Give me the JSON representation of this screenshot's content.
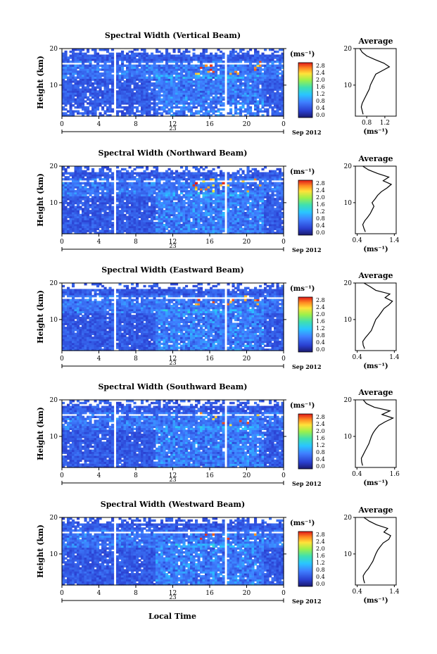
{
  "figure": {
    "xlabel": "Local Time",
    "date_label": "Sep 2012",
    "day_label": "23",
    "unit_label": "(ms⁻¹)",
    "avg_title": "Average",
    "ylabel": "Height (km)"
  },
  "chart_data": [
    {
      "type": "heatmap",
      "title": "Spectral Width (Vertical Beam)",
      "xlabel": "",
      "ylabel": "Height (km)",
      "xlim": [
        0,
        24
      ],
      "ylim": [
        1.5,
        20
      ],
      "xticks": [
        "0",
        "4",
        "8",
        "12",
        "16",
        "20",
        "0"
      ],
      "yticks": [
        "10",
        "20"
      ],
      "colorbar": {
        "unit": "(ms⁻¹)",
        "ticks": [
          "0.0",
          "0.4",
          "0.8",
          "1.2",
          "1.6",
          "2.0",
          "2.4",
          "2.8"
        ],
        "range": [
          0,
          2.8
        ]
      },
      "gaps_hours": [
        [
          5.5,
          6.0
        ],
        [
          17.5,
          18.0
        ]
      ],
      "average": {
        "title": "Average",
        "xlabel": "(ms⁻¹)",
        "xlim": [
          0.55,
          1.45
        ],
        "xticks": [
          "0.8",
          "1.2"
        ],
        "yticks": [
          "10",
          "20"
        ],
        "height_km": [
          2,
          3,
          4,
          5,
          6,
          7,
          8,
          9,
          10,
          11,
          12,
          13,
          14,
          15,
          16,
          17,
          18,
          19,
          20
        ],
        "width_ms": [
          0.72,
          0.7,
          0.68,
          0.7,
          0.74,
          0.78,
          0.82,
          0.86,
          0.88,
          0.92,
          0.96,
          1.0,
          1.15,
          1.3,
          1.18,
          0.98,
          0.8,
          0.7,
          0.65
        ]
      }
    },
    {
      "type": "heatmap",
      "title": "Spectral Width (Northward Beam)",
      "xlabel": "",
      "ylabel": "Height (km)",
      "xlim": [
        0,
        24
      ],
      "ylim": [
        1.5,
        20
      ],
      "xticks": [
        "0",
        "4",
        "8",
        "12",
        "16",
        "20",
        "0"
      ],
      "yticks": [
        "10",
        "20"
      ],
      "colorbar": {
        "unit": "(ms⁻¹)",
        "ticks": [
          "0.0",
          "0.4",
          "0.8",
          "1.2",
          "1.6",
          "2.0",
          "2.4",
          "2.8"
        ],
        "range": [
          0,
          2.8
        ]
      },
      "gaps_hours": [
        [
          5.5,
          6.0
        ],
        [
          17.5,
          18.0
        ]
      ],
      "average": {
        "title": "Average",
        "xlabel": "(ms⁻¹)",
        "xlim": [
          0.35,
          1.45
        ],
        "xticks": [
          "0.4",
          "1.4"
        ],
        "yticks": [
          "10",
          "20"
        ],
        "height_km": [
          2,
          3,
          4,
          5,
          6,
          7,
          8,
          9,
          10,
          11,
          12,
          13,
          14,
          15,
          16,
          17,
          18,
          19,
          20
        ],
        "width_ms": [
          0.62,
          0.58,
          0.55,
          0.6,
          0.68,
          0.75,
          0.8,
          0.85,
          0.8,
          0.88,
          0.95,
          1.05,
          1.2,
          1.32,
          1.1,
          1.25,
          0.95,
          0.7,
          0.55
        ]
      }
    },
    {
      "type": "heatmap",
      "title": "Spectral Width (Eastward Beam)",
      "xlabel": "",
      "ylabel": "Height (km)",
      "xlim": [
        0,
        24
      ],
      "ylim": [
        1.5,
        20
      ],
      "xticks": [
        "0",
        "4",
        "8",
        "12",
        "16",
        "20",
        "0"
      ],
      "yticks": [
        "10",
        "20"
      ],
      "colorbar": {
        "unit": "(ms⁻¹)",
        "ticks": [
          "0.0",
          "0.4",
          "0.8",
          "1.2",
          "1.6",
          "2.0",
          "2.4",
          "2.8"
        ],
        "range": [
          0,
          2.8
        ]
      },
      "gaps_hours": [
        [
          5.5,
          6.0
        ],
        [
          17.5,
          18.0
        ]
      ],
      "average": {
        "title": "Average",
        "xlabel": "(ms⁻¹)",
        "xlim": [
          0.35,
          1.45
        ],
        "xticks": [
          "0.4",
          "1.4"
        ],
        "yticks": [
          "10",
          "20"
        ],
        "height_km": [
          2,
          3,
          4,
          5,
          6,
          7,
          8,
          9,
          10,
          11,
          12,
          13,
          14,
          15,
          16,
          17,
          18,
          19,
          20
        ],
        "width_ms": [
          0.6,
          0.56,
          0.55,
          0.62,
          0.7,
          0.78,
          0.82,
          0.86,
          0.9,
          0.98,
          1.05,
          1.12,
          1.25,
          1.35,
          1.15,
          1.28,
          0.9,
          0.75,
          0.58
        ]
      }
    },
    {
      "type": "heatmap",
      "title": "Spectral Width (Southward Beam)",
      "xlabel": "",
      "ylabel": "Height (km)",
      "xlim": [
        0,
        24
      ],
      "ylim": [
        1.5,
        20
      ],
      "xticks": [
        "0",
        "4",
        "8",
        "12",
        "16",
        "20",
        "0"
      ],
      "yticks": [
        "10",
        "20"
      ],
      "colorbar": {
        "unit": "(ms⁻¹)",
        "ticks": [
          "0.0",
          "0.4",
          "0.8",
          "1.2",
          "1.6",
          "2.0",
          "2.4",
          "2.8"
        ],
        "range": [
          0,
          2.8
        ]
      },
      "gaps_hours": [
        [
          5.5,
          6.0
        ],
        [
          17.5,
          18.0
        ]
      ],
      "average": {
        "title": "Average",
        "xlabel": "(ms⁻¹)",
        "xlim": [
          0.35,
          1.65
        ],
        "xticks": [
          "0.4",
          "1.6"
        ],
        "yticks": [
          "10",
          "20"
        ],
        "height_km": [
          2,
          3,
          4,
          5,
          6,
          7,
          8,
          9,
          10,
          11,
          12,
          13,
          14,
          15,
          16,
          17,
          18,
          19,
          20
        ],
        "width_ms": [
          0.58,
          0.55,
          0.54,
          0.6,
          0.66,
          0.72,
          0.78,
          0.82,
          0.86,
          0.92,
          1.0,
          1.1,
          1.3,
          1.55,
          1.2,
          1.45,
          0.95,
          0.7,
          0.6
        ]
      }
    },
    {
      "type": "heatmap",
      "title": "Spectral Width (Westward Beam)",
      "xlabel": "Local Time",
      "ylabel": "Height (km)",
      "xlim": [
        0,
        24
      ],
      "ylim": [
        1.5,
        20
      ],
      "xticks": [
        "0",
        "4",
        "8",
        "12",
        "16",
        "20",
        "0"
      ],
      "yticks": [
        "10",
        "20"
      ],
      "colorbar": {
        "unit": "(ms⁻¹)",
        "ticks": [
          "0.0",
          "0.4",
          "0.8",
          "1.2",
          "1.6",
          "2.0",
          "2.4",
          "2.8"
        ],
        "range": [
          0,
          2.8
        ]
      },
      "gaps_hours": [
        [
          5.5,
          6.0
        ],
        [
          17.5,
          18.0
        ]
      ],
      "average": {
        "title": "Average",
        "xlabel": "(ms⁻¹)",
        "xlim": [
          0.35,
          1.45
        ],
        "xticks": [
          "0.4",
          "1.4"
        ],
        "yticks": [
          "10",
          "20"
        ],
        "height_km": [
          2,
          3,
          4,
          5,
          6,
          7,
          8,
          9,
          10,
          11,
          12,
          13,
          14,
          15,
          16,
          17,
          18,
          19,
          20
        ],
        "width_ms": [
          0.6,
          0.57,
          0.56,
          0.62,
          0.7,
          0.76,
          0.82,
          0.86,
          0.9,
          0.95,
          1.02,
          1.1,
          1.25,
          1.3,
          1.12,
          1.22,
          0.92,
          0.72,
          0.58
        ]
      }
    }
  ]
}
